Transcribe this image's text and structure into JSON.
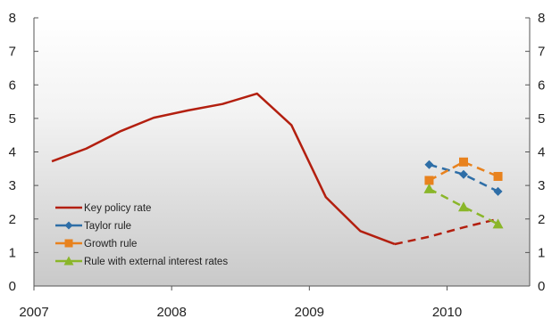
{
  "chart_data": {
    "type": "line",
    "title": "",
    "xlabel": "",
    "ylabel": "",
    "ylim": [
      0,
      8
    ],
    "xlim": [
      2007.0,
      2010.6
    ],
    "y_ticks": [
      0,
      1,
      2,
      3,
      4,
      5,
      6,
      7,
      8
    ],
    "y_ticks_right": [
      0,
      1,
      2,
      3,
      4,
      5,
      6,
      7,
      8
    ],
    "x_ticks": [
      {
        "label": "2007",
        "value": 2007.0
      },
      {
        "label": "2008",
        "value": 2008.0
      },
      {
        "label": "2009",
        "value": 2009.0
      },
      {
        "label": "2010",
        "value": 2010.0
      }
    ],
    "grid": false,
    "background": "gradient-grey",
    "legend_position": "bottom-left",
    "series": [
      {
        "name": "Key policy rate",
        "color": "#b31f0f",
        "marker": "none",
        "x": [
          2007.13,
          2007.38,
          2007.63,
          2007.87,
          2008.12,
          2008.37,
          2008.62,
          2008.87,
          2009.12,
          2009.37,
          2009.62
        ],
        "values": [
          3.72,
          4.1,
          4.62,
          5.02,
          5.24,
          5.43,
          5.74,
          4.8,
          2.65,
          1.64,
          1.25
        ],
        "projection": {
          "x": [
            2009.62,
            2009.87,
            2010.12,
            2010.37
          ],
          "values": [
            1.25,
            1.47,
            1.75,
            2.0
          ]
        }
      },
      {
        "name": "Taylor rule",
        "color": "#2e6ea7",
        "marker": "diamond",
        "dashed": true,
        "x": [
          2009.87,
          2010.12,
          2010.37
        ],
        "values": [
          3.62,
          3.33,
          2.82
        ]
      },
      {
        "name": "Growth rule",
        "color": "#e8821e",
        "marker": "square",
        "dashed": true,
        "x": [
          2009.87,
          2010.12,
          2010.37
        ],
        "values": [
          3.15,
          3.7,
          3.27
        ]
      },
      {
        "name": "Rule with external interest rates",
        "color": "#8ab629",
        "marker": "triangle",
        "dashed": true,
        "x": [
          2009.87,
          2010.12,
          2010.37
        ],
        "values": [
          2.9,
          2.36,
          1.85
        ]
      }
    ]
  }
}
